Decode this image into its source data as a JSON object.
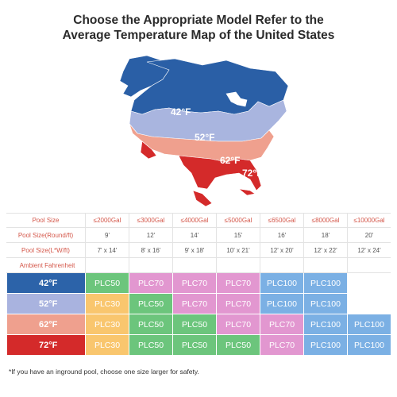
{
  "title_line1": "Choose the Appropriate Model Refer to the",
  "title_line2": "Average Temperature Map of the United States",
  "map": {
    "zone_labels": [
      "42°F",
      "52°F",
      "62°F",
      "72°F"
    ],
    "colors": {
      "zone42": "#2a5fa6",
      "zone52": "#a9b5df",
      "zone62": "#efa08e",
      "zone72": "#d42a2a",
      "ocean": "#ffffff"
    }
  },
  "table": {
    "pool_size_label": "Pool Size",
    "pool_size": [
      "≤2000Gal",
      "≤3000Gal",
      "≤4000Gal",
      "≤5000Gal",
      "≤6500Gal",
      "≤8000Gal",
      "≤10000Gal"
    ],
    "round_label": "Pool Size(Round/ft)",
    "round": [
      "9'",
      "12'",
      "14'",
      "15'",
      "16'",
      "18'",
      "20'"
    ],
    "rect_label": "Pool Size(L*W/ft)",
    "rect": [
      "7' x 14'",
      "8' x 16'",
      "9' x 18'",
      "10' x 21'",
      "12' x 20'",
      "12' x 22'",
      "12' x 24'"
    ],
    "ambient_label": "Ambient Fahrenheit",
    "rows": [
      {
        "temp": "42°F",
        "temp_color": "#2c63a9",
        "models": [
          "PLC50",
          "PLC70",
          "PLC70",
          "PLC70",
          "PLC100",
          "PLC100",
          ""
        ]
      },
      {
        "temp": "52°F",
        "temp_color": "#a9b3df",
        "models": [
          "PLC30",
          "PLC50",
          "PLC70",
          "PLC70",
          "PLC100",
          "PLC100",
          ""
        ]
      },
      {
        "temp": "62°F",
        "temp_color": "#efa08e",
        "models": [
          "PLC30",
          "PLC50",
          "PLC50",
          "PLC70",
          "PLC70",
          "PLC100",
          "PLC100"
        ]
      },
      {
        "temp": "72°F",
        "temp_color": "#d42a2a",
        "models": [
          "PLC30",
          "PLC50",
          "PLC50",
          "PLC50",
          "PLC70",
          "PLC100",
          "PLC100"
        ]
      }
    ],
    "model_colors": {
      "PLC30": "#f9c66e",
      "PLC50": "#6cc57c",
      "PLC70": "#e297d0",
      "PLC100": "#7bb0e4"
    }
  },
  "footnote": "*If you have an inground pool, choose one size larger for safety."
}
